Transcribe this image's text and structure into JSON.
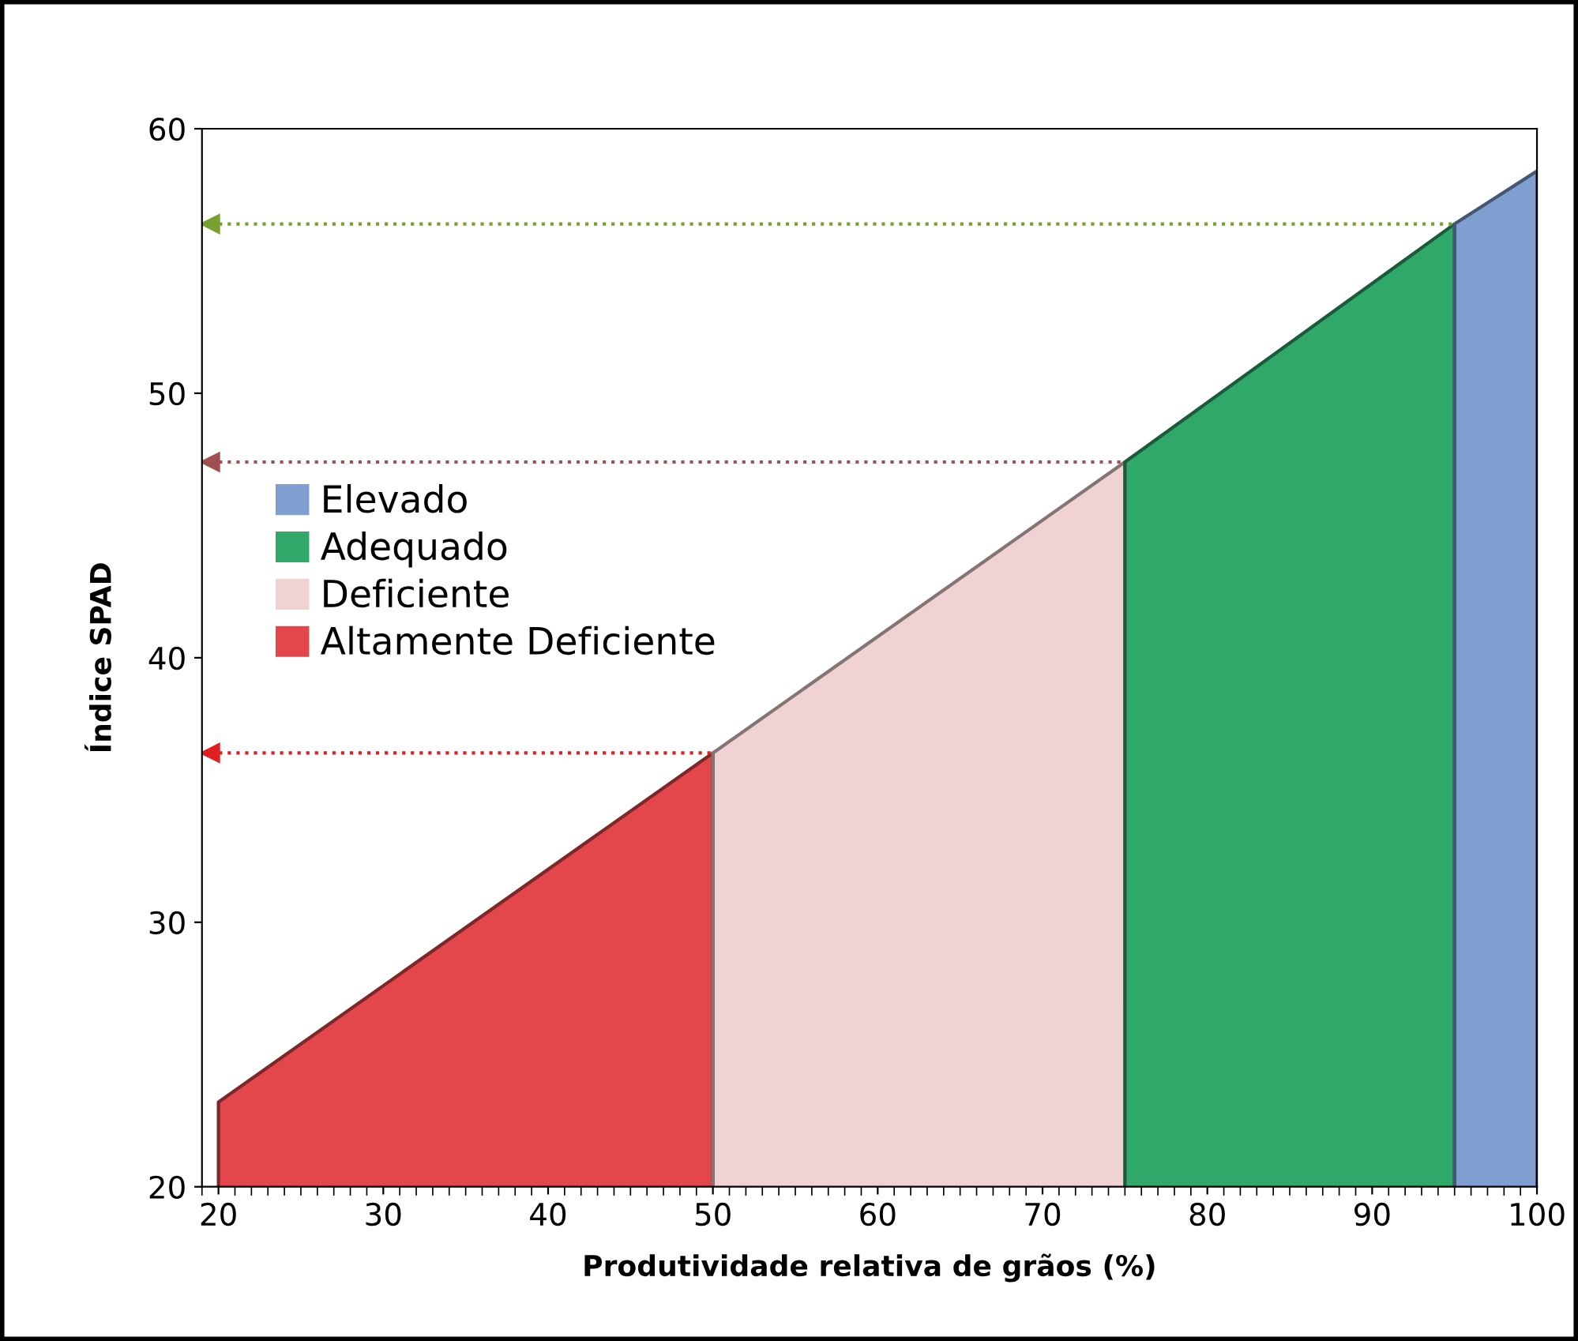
{
  "chart_data": {
    "type": "area",
    "xlabel": "Produtividade relativa de grãos (%)",
    "ylabel": "Índice SPAD",
    "xlim": [
      19,
      100
    ],
    "ylim": [
      20,
      60
    ],
    "xticks": [
      20,
      30,
      40,
      50,
      60,
      70,
      80,
      90,
      100
    ],
    "yticks": [
      20,
      30,
      40,
      50,
      60
    ],
    "grid": false,
    "legend": "left",
    "series": [
      {
        "name": "Altamente Deficiente",
        "color": "#e4474b",
        "x": [
          20,
          50
        ],
        "values": [
          23.2,
          36.4
        ]
      },
      {
        "name": "Deficiente",
        "color": "#f0d2d2",
        "x": [
          50,
          75
        ],
        "values": [
          36.4,
          47.4
        ]
      },
      {
        "name": "Adequado",
        "color": "#2fa86a",
        "x": [
          75,
          95
        ],
        "values": [
          47.4,
          56.4
        ]
      },
      {
        "name": "Elevado",
        "color": "#7f9fd0",
        "x": [
          95,
          100
        ],
        "values": [
          56.4,
          58.4
        ]
      },
      {
        "type": "line",
        "color": "#e02020",
        "line_style": "dotted",
        "x": [
          19.5,
          50
        ],
        "values": [
          36.4,
          36.4
        ]
      },
      {
        "type": "line",
        "color": "#a05050",
        "line_style": "dotted",
        "x": [
          19.5,
          75
        ],
        "values": [
          47.4,
          47.4
        ]
      },
      {
        "type": "line",
        "color": "#77a030",
        "line_style": "dotted",
        "x": [
          19.5,
          95
        ],
        "values": [
          56.4,
          56.4
        ]
      }
    ]
  }
}
